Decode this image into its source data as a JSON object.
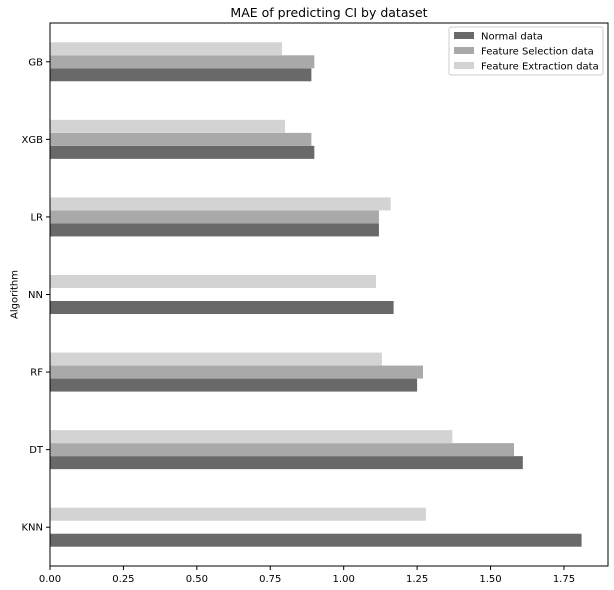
{
  "chart_data": {
    "type": "bar",
    "orientation": "horizontal",
    "title": "MAE of predicting CI by dataset",
    "xlabel": "",
    "ylabel": "Algorithm",
    "categories": [
      "KNN",
      "DT",
      "RF",
      "NN",
      "LR",
      "XGB",
      "GB"
    ],
    "series": [
      {
        "name": "Normal data",
        "color": "#696969",
        "values": [
          1.81,
          1.61,
          1.25,
          1.17,
          1.12,
          0.9,
          0.89
        ]
      },
      {
        "name": "Feature Selection data",
        "color": "#a9a9a9",
        "values": [
          null,
          1.58,
          1.27,
          null,
          1.12,
          0.89,
          0.9
        ]
      },
      {
        "name": "Feature Extraction data",
        "color": "#d3d3d3",
        "values": [
          1.28,
          1.37,
          1.13,
          1.11,
          1.16,
          0.8,
          0.79
        ]
      }
    ],
    "xlim": [
      0,
      1.9
    ],
    "xticks": [
      "0.00",
      "0.25",
      "0.50",
      "0.75",
      "1.00",
      "1.25",
      "1.50",
      "1.75"
    ],
    "grid": false,
    "legend": "top-right"
  }
}
